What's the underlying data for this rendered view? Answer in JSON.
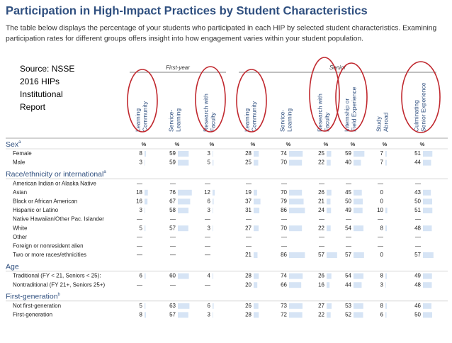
{
  "header": {
    "title": "Participation in High-Impact Practices by Student Characteristics",
    "description": [
      "The table below displays the percentage of your students who participated in each HIP by selected student characteristics. Examining",
      "participation rates for different groups offers insight into how engagement varies within your student population."
    ]
  },
  "annotation": {
    "lines": [
      "Source: NSSE",
      "2016 HIPs",
      "Institutional",
      "Report"
    ]
  },
  "table": {
    "groups": [
      {
        "label": "First-year",
        "columns": [
          0,
          1,
          2
        ]
      },
      {
        "label": "Senior",
        "columns": [
          3,
          4,
          5,
          6,
          7,
          8
        ]
      }
    ],
    "columns": [
      [
        "Learning",
        "Community"
      ],
      [
        "Service-",
        "Learning"
      ],
      [
        "Research with",
        "Faculty"
      ],
      [
        "Learning",
        "Community"
      ],
      [
        "Service-",
        "Learning"
      ],
      [
        "Research with",
        "Faculty"
      ],
      [
        "Internship or",
        "Field Experience"
      ],
      [
        "Study",
        "Abroad"
      ],
      [
        "Culminating",
        "Senior Experience"
      ]
    ],
    "percent_symbol": "%",
    "dash": "—",
    "sections": [
      {
        "title": "Sex",
        "note": "a",
        "rows": [
          {
            "label": "Female",
            "cells": [
              8,
              59,
              3,
              28,
              74,
              25,
              59,
              7,
              51
            ]
          },
          {
            "label": "Male",
            "cells": [
              3,
              59,
              5,
              25,
              70,
              22,
              40,
              7,
              44
            ]
          }
        ]
      },
      {
        "title": "Race/ethnicity or international",
        "note": "a",
        "rows": [
          {
            "label": "American Indian or Alaska Native",
            "cells": [
              null,
              null,
              null,
              null,
              null,
              null,
              null,
              null,
              null
            ]
          },
          {
            "label": "Asian",
            "cells": [
              18,
              76,
              12,
              19,
              70,
              26,
              45,
              0,
              43
            ]
          },
          {
            "label": "Black or African American",
            "cells": [
              16,
              67,
              6,
              37,
              79,
              21,
              50,
              0,
              50
            ]
          },
          {
            "label": "Hispanic or Latino",
            "cells": [
              3,
              58,
              3,
              31,
              86,
              24,
              49,
              10,
              51
            ]
          },
          {
            "label": "Native Hawaiian/Other Pac. Islander",
            "cells": [
              null,
              null,
              null,
              null,
              null,
              null,
              null,
              null,
              null
            ]
          },
          {
            "label": "White",
            "cells": [
              5,
              57,
              3,
              27,
              70,
              22,
              54,
              8,
              48
            ]
          },
          {
            "label": "Other",
            "cells": [
              null,
              null,
              null,
              null,
              null,
              null,
              null,
              null,
              null
            ]
          },
          {
            "label": "Foreign or nonresident alien",
            "cells": [
              null,
              null,
              null,
              null,
              null,
              null,
              null,
              null,
              null
            ]
          },
          {
            "label": "Two or more races/ethnicities",
            "cells": [
              null,
              null,
              null,
              21,
              86,
              57,
              57,
              0,
              57
            ]
          }
        ]
      },
      {
        "title": "Age",
        "note": null,
        "rows": [
          {
            "label": "Traditional (FY < 21, Seniors < 25):",
            "cells": [
              6,
              60,
              4,
              28,
              74,
              26,
              54,
              8,
              49
            ]
          },
          {
            "label": "Nontraditional (FY 21+, Seniors 25+)",
            "cells": [
              null,
              null,
              null,
              20,
              66,
              16,
              44,
              3,
              48
            ]
          }
        ]
      },
      {
        "title": "First-generation",
        "note": "b",
        "rows": [
          {
            "label": "Not first-generation",
            "cells": [
              5,
              63,
              6,
              26,
              73,
              27,
              53,
              8,
              46
            ]
          },
          {
            "label": "First-generation",
            "cells": [
              8,
              57,
              3,
              28,
              72,
              22,
              52,
              6,
              50
            ]
          }
        ]
      }
    ]
  }
}
